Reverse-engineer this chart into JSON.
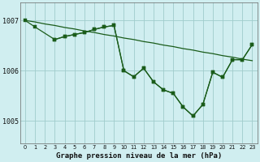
{
  "title": "Graphe pression niveau de la mer (hPa)",
  "background_color": "#d0eef0",
  "plot_bg_color": "#d0eef0",
  "grid_color": "#a0cccc",
  "line_color": "#1a5c1a",
  "marker_color": "#1a5c1a",
  "xlim": [
    -0.5,
    23.5
  ],
  "ylim": [
    1004.55,
    1007.35
  ],
  "yticks": [
    1005,
    1006,
    1007
  ],
  "xticks": [
    0,
    1,
    2,
    3,
    4,
    5,
    6,
    7,
    8,
    9,
    10,
    11,
    12,
    13,
    14,
    15,
    16,
    17,
    18,
    19,
    20,
    21,
    22,
    23
  ],
  "line1_x": [
    0,
    1,
    2,
    3,
    4,
    5,
    6,
    7,
    8,
    9,
    10,
    11,
    12,
    13,
    14,
    15,
    16,
    17,
    18,
    19,
    20,
    21,
    22,
    23
  ],
  "line1_y": [
    1007.0,
    1006.97,
    1006.93,
    1006.9,
    1006.86,
    1006.83,
    1006.79,
    1006.76,
    1006.72,
    1006.69,
    1006.65,
    1006.62,
    1006.58,
    1006.55,
    1006.51,
    1006.48,
    1006.44,
    1006.41,
    1006.37,
    1006.34,
    1006.3,
    1006.27,
    1006.23,
    1006.2
  ],
  "line2_x": [
    0,
    1,
    3,
    4,
    5,
    6,
    7,
    8,
    9,
    10,
    11,
    12,
    13,
    14,
    15,
    16,
    17,
    18,
    19,
    20,
    21,
    22,
    23
  ],
  "line2_y": [
    1007.0,
    1006.87,
    1006.62,
    1006.68,
    1006.72,
    1006.76,
    1006.82,
    1006.87,
    1006.9,
    1006.0,
    1005.88,
    1006.05,
    1005.78,
    1005.62,
    1005.55,
    1005.28,
    1005.1,
    1005.33,
    1005.97,
    1005.87,
    1006.22,
    1006.22,
    1006.52
  ],
  "line3_x": [
    3,
    4,
    5,
    6,
    7,
    8,
    9,
    10,
    11,
    12,
    13,
    14,
    15,
    16,
    17,
    18,
    19,
    20,
    21,
    22,
    23
  ],
  "line3_y": [
    1006.62,
    1006.68,
    1006.72,
    1006.76,
    1006.82,
    1006.87,
    1006.9,
    1006.0,
    1005.88,
    1006.05,
    1005.78,
    1005.62,
    1005.55,
    1005.28,
    1005.1,
    1005.33,
    1005.97,
    1005.87,
    1006.22,
    1006.22,
    1006.52
  ]
}
